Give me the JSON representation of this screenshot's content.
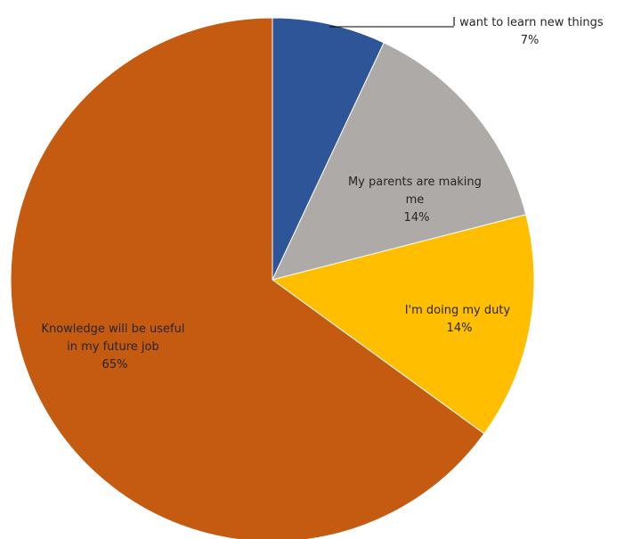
{
  "chart_data": {
    "type": "pie",
    "slices": [
      {
        "label_lines": [
          "I want to learn new things"
        ],
        "percent_text": "7%",
        "value": 7,
        "color": "#2E5597"
      },
      {
        "label_lines": [
          "My parents are making",
          "me"
        ],
        "percent_text": "14%",
        "value": 14,
        "color": "#ADAAA7"
      },
      {
        "label_lines": [
          "I'm doing my duty"
        ],
        "percent_text": "14%",
        "value": 14,
        "color": "#FFBF00"
      },
      {
        "label_lines": [
          "Knowledge will be useful",
          "in my future job"
        ],
        "percent_text": "65%",
        "value": 65,
        "color": "#C55A11"
      }
    ],
    "start_angle_deg": 0,
    "direction": "clockwise",
    "legend": "none",
    "leader_line_on": "I want to learn new things"
  }
}
